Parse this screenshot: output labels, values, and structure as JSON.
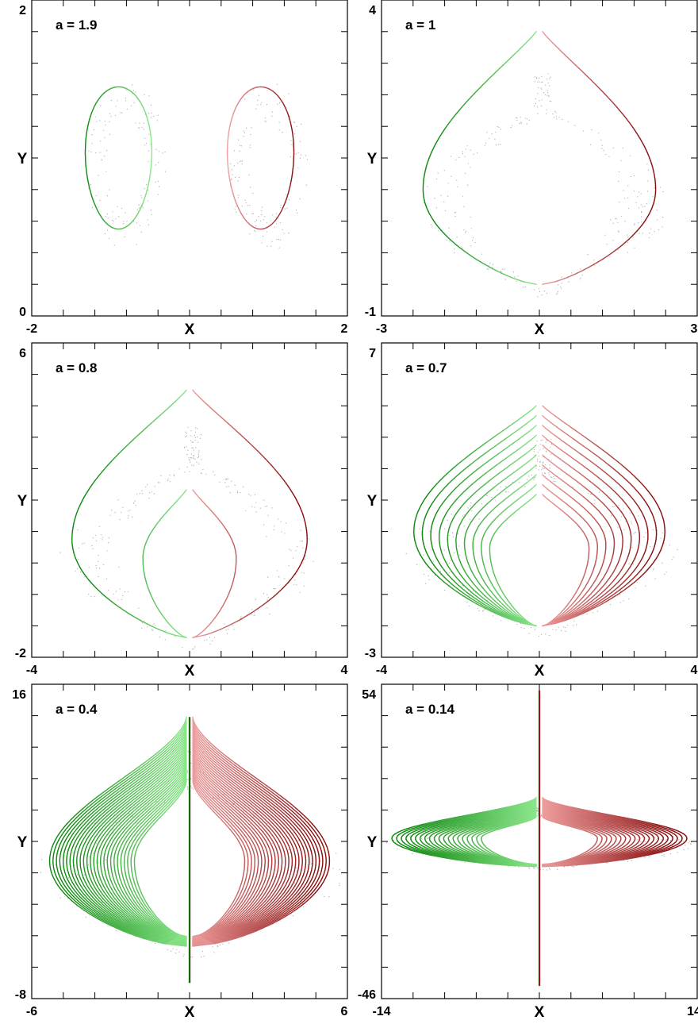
{
  "chart_data": [
    {
      "type": "line",
      "label": "a = 1.9",
      "xlabel": "X",
      "ylabel": "Y",
      "xlim": [
        -2,
        2
      ],
      "ylim": [
        0,
        2
      ],
      "xtick_labels": [
        "-2",
        "2"
      ],
      "ytick_labels": [
        "0",
        "2"
      ],
      "shape": "two-cycles",
      "loops": 1,
      "left_center_x": -0.9,
      "right_center_x": 0.9,
      "center_y": 1.0,
      "x_half_width": 0.42,
      "y_half_height": 0.45
    },
    {
      "type": "line",
      "label": "a = 1",
      "xlabel": "X",
      "ylabel": "Y",
      "xlim": [
        -3,
        3
      ],
      "ylim": [
        -1,
        4
      ],
      "xtick_labels": [
        "-3",
        "3"
      ],
      "ytick_labels": [
        "-1",
        "4"
      ],
      "shape": "heart",
      "loops": 1,
      "tip_y": 3.5,
      "bottom_y": -0.5,
      "max_abs_x": 2.15,
      "max_x_at_y": 1.0
    },
    {
      "type": "line",
      "label": "a = 0.8",
      "xlabel": "X",
      "ylabel": "Y",
      "xlim": [
        -4,
        4
      ],
      "ylim": [
        -2,
        6
      ],
      "xtick_labels": [
        "-4",
        "4"
      ],
      "ytick_labels": [
        "-2",
        "6"
      ],
      "shape": "heart",
      "loops": 2,
      "tip_y": 4.8,
      "bottom_y": -1.5,
      "max_abs_x": 2.9,
      "max_x_at_y": 1.0
    },
    {
      "type": "line",
      "label": "a = 0.7",
      "xlabel": "X",
      "ylabel": "Y",
      "xlim": [
        -4,
        4
      ],
      "ylim": [
        -3,
        7
      ],
      "xtick_labels": [
        "-4",
        "4"
      ],
      "ytick_labels": [
        "-3",
        "7"
      ],
      "shape": "heart",
      "loops": 10,
      "tip_y": 5.0,
      "bottom_y": -2.0,
      "max_abs_x": 3.1,
      "max_x_at_y": 1.0
    },
    {
      "type": "line",
      "label": "a = 0.4",
      "xlabel": "X",
      "ylabel": "Y",
      "xlim": [
        -6,
        6
      ],
      "ylim": [
        -8,
        16
      ],
      "xtick_labels": [
        "-6",
        "6"
      ],
      "ytick_labels": [
        "-8",
        "16"
      ],
      "shape": "spindle",
      "loops": 26,
      "tip_y": 13.5,
      "bottom_y": -4.0,
      "max_abs_x": 5.2,
      "max_x_at_y": 2.5,
      "stem_top_y": 13.5,
      "stem_bottom_y": -6.8
    },
    {
      "type": "line",
      "label": "a = 0.14",
      "xlabel": "X",
      "ylabel": "Y",
      "xlim": [
        -14,
        14
      ],
      "ylim": [
        -46,
        54
      ],
      "xtick_labels": [
        "-14",
        "14"
      ],
      "ytick_labels": [
        "-46",
        "54"
      ],
      "shape": "spindle",
      "loops": 20,
      "tip_y": 18.0,
      "bottom_y": -4.0,
      "max_abs_x": 12.8,
      "max_x_at_y": 5.0,
      "stem_top_y": 52.0,
      "stem_bottom_y": -42.0
    }
  ],
  "colors": {
    "left_series_dark": "#118a11",
    "left_series_light": "#8ee88e",
    "right_series_dark": "#8a1010",
    "right_series_light": "#f0a0a0",
    "cloud": "#a8a8a8",
    "frame": "#000000"
  }
}
